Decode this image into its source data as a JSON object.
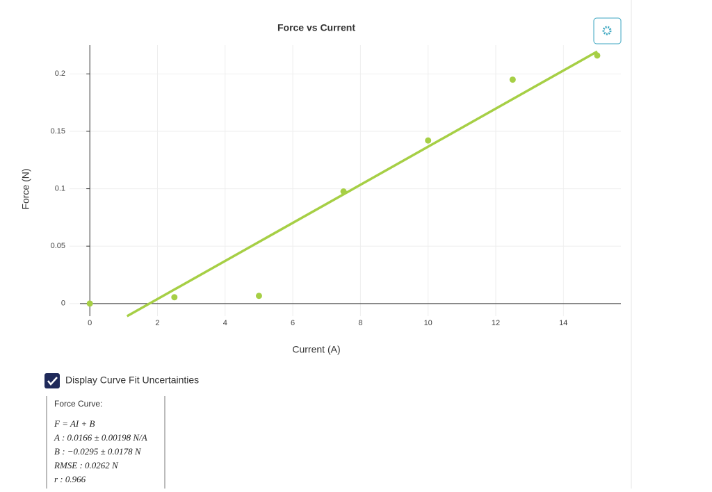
{
  "chart_data": {
    "type": "scatter",
    "title": "Force vs Current",
    "x_label": "Current (A)",
    "y_label": "Force (N)",
    "xlim": [
      -0.6,
      15.7
    ],
    "ylim": [
      -0.011,
      0.225
    ],
    "xticks": [
      0,
      2,
      4,
      6,
      8,
      10,
      12,
      14
    ],
    "yticks": [
      0,
      0.05,
      0.1,
      0.15,
      0.2
    ],
    "grid": true,
    "series": [
      {
        "kind": "scatter",
        "color": "#a6cf45",
        "x": [
          0,
          2.5,
          5,
          7.5,
          10,
          12.5,
          15
        ],
        "values": [
          0,
          0.0055,
          0.0067,
          0.0976,
          0.142,
          0.195,
          0.216
        ]
      },
      {
        "kind": "line",
        "color": "#a6cf45",
        "x": [
          1.1,
          15
        ],
        "values": [
          -0.011,
          0.2195
        ]
      }
    ]
  },
  "controls": {
    "checkbox_label": "Display Curve Fit Uncertainties"
  },
  "fit_panel": {
    "title": "Force Curve:",
    "lines": [
      "F = AI + B",
      "A : 0.0166 ± 0.00198 N/A",
      "B : −0.0295 ± 0.0178 N",
      "RMSE : 0.0262 N",
      "r : 0.966"
    ]
  }
}
